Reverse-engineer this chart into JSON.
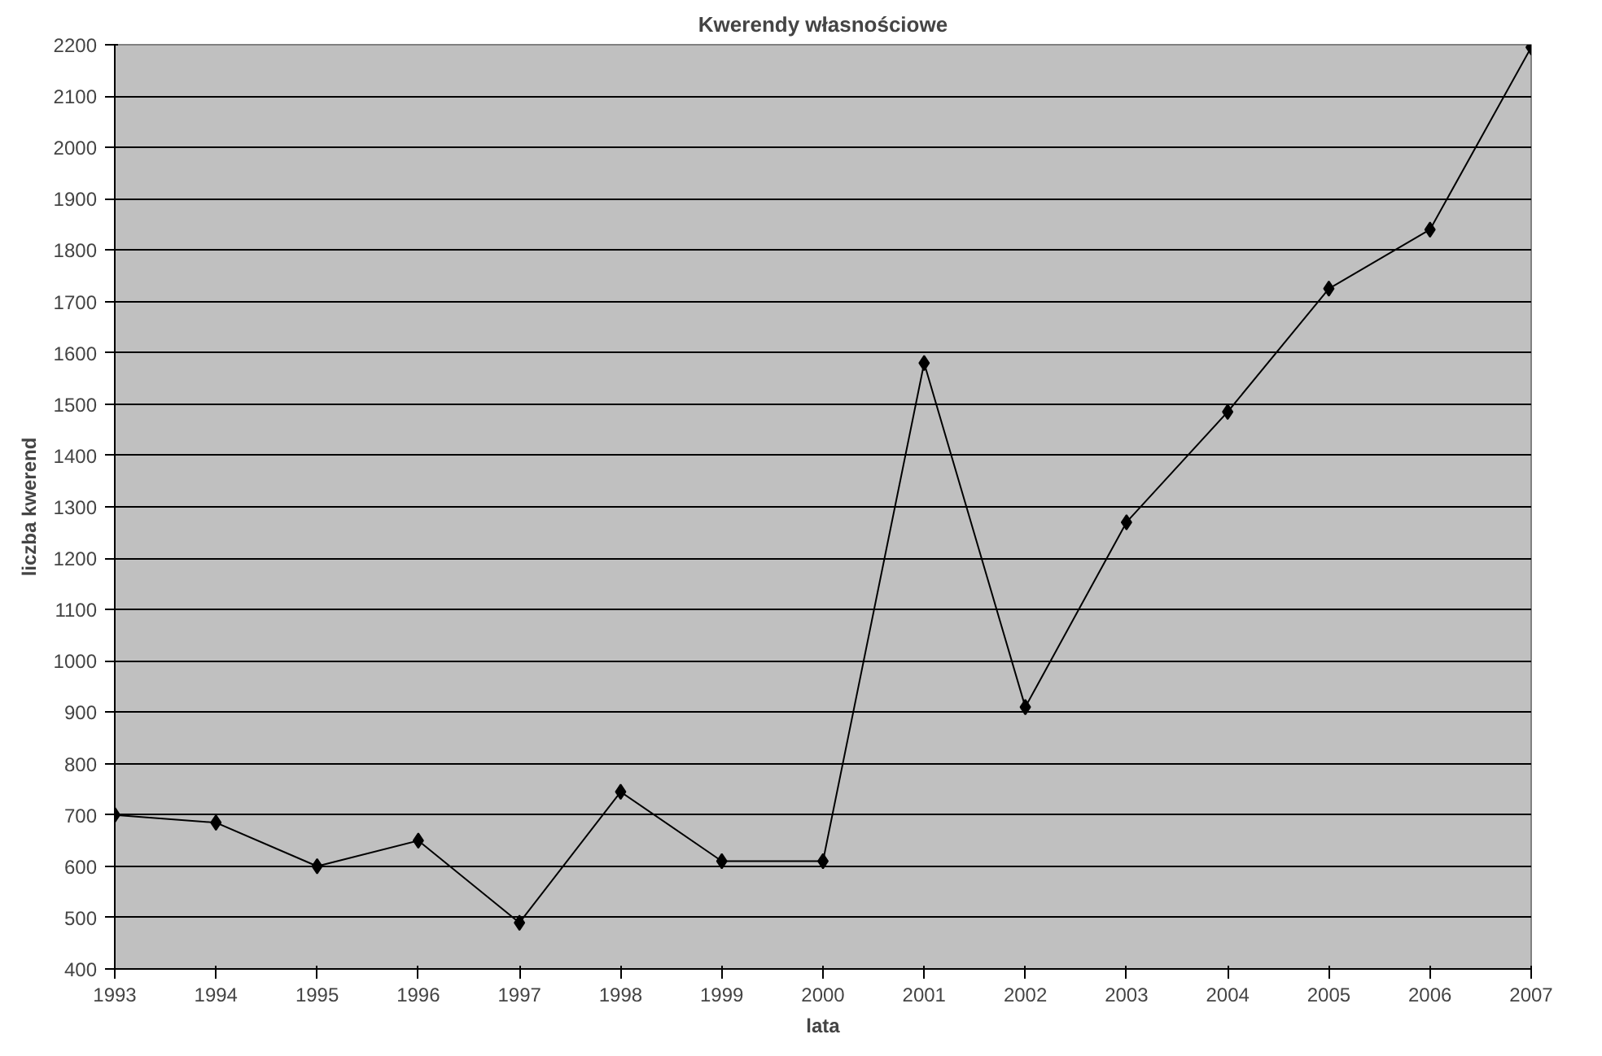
{
  "chart_data": {
    "type": "line",
    "title": "Kwerendy własnościowe",
    "xlabel": "lata",
    "ylabel": "liczba kwerend",
    "x": [
      1993,
      1994,
      1995,
      1996,
      1997,
      1998,
      1999,
      2000,
      2001,
      2002,
      2003,
      2004,
      2005,
      2006,
      2007
    ],
    "series": [
      {
        "color": "#000000",
        "values": [
          700,
          685,
          600,
          650,
          490,
          745,
          610,
          610,
          1580,
          910,
          1270,
          1485,
          1725,
          1840,
          2195
        ]
      }
    ],
    "xlim": [
      1993,
      2007
    ],
    "xticks": [
      1993,
      1994,
      1995,
      1996,
      1997,
      1998,
      1999,
      2000,
      2001,
      2002,
      2003,
      2004,
      2005,
      2006,
      2007
    ],
    "ylim": [
      400,
      2200
    ],
    "yticks": [
      400,
      500,
      600,
      700,
      800,
      900,
      1000,
      1100,
      1200,
      1300,
      1400,
      1500,
      1600,
      1700,
      1800,
      1900,
      2000,
      2100,
      2200
    ],
    "grid": "y",
    "marker": "diamond",
    "line_style": "solid"
  }
}
